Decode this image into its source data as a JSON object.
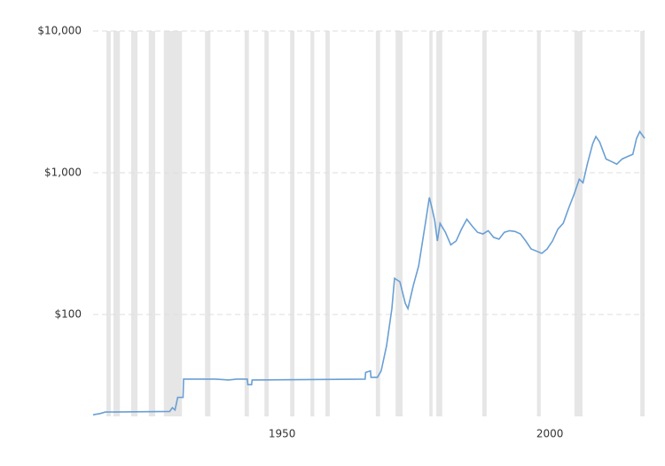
{
  "chart_data": {
    "type": "line",
    "log_y": true,
    "grid": true,
    "xlim": [
      1914.7,
      2017.7
    ],
    "xticks": [
      1950,
      2000
    ],
    "ylim": [
      19.1,
      10000
    ],
    "yticks": [
      {
        "value": 100,
        "label": "$100"
      },
      {
        "value": 1000,
        "label": "$1,000"
      },
      {
        "value": 10000,
        "label": "$10,000"
      }
    ],
    "shading_color": "#e6e6e6",
    "recessions": [
      [
        1917.2,
        1918.0
      ],
      [
        1918.5,
        1919.7
      ],
      [
        1921.8,
        1923.0
      ],
      [
        1925.1,
        1926.3
      ],
      [
        1927.9,
        1931.3
      ],
      [
        1935.6,
        1936.6
      ],
      [
        1943.0,
        1943.8
      ],
      [
        1946.7,
        1947.5
      ],
      [
        1951.5,
        1952.3
      ],
      [
        1955.3,
        1956.0
      ],
      [
        1958.1,
        1958.9
      ],
      [
        1967.5,
        1968.3
      ],
      [
        1971.2,
        1972.5
      ],
      [
        1977.5,
        1978.1
      ],
      [
        1978.8,
        1979.9
      ],
      [
        1987.4,
        1988.2
      ],
      [
        1997.6,
        1998.3
      ],
      [
        2004.6,
        2006.1
      ],
      [
        2016.9,
        2017.7
      ]
    ],
    "x": [
      1914.7,
      1916,
      1917,
      1929,
      1929.5,
      1930,
      1930.5,
      1931.5,
      1931.6,
      1937.5,
      1940,
      1941.5,
      1943.5,
      1943.6,
      1944.3,
      1944.4,
      1965.5,
      1965.6,
      1966.5,
      1966.6,
      1967.8,
      1968.5,
      1969.5,
      1970.5,
      1971,
      1972,
      1973,
      1973.5,
      1974.5,
      1975.5,
      1976.8,
      1977.5,
      1978,
      1978.5,
      1979,
      1979.5,
      1980.5,
      1981.5,
      1982.5,
      1983.5,
      1984.5,
      1985.5,
      1986.5,
      1987.5,
      1988.5,
      1989.5,
      1990.5,
      1991.5,
      1992.5,
      1993.5,
      1994.5,
      1995.5,
      1996.5,
      1997.5,
      1998.5,
      1999.5,
      2000.5,
      2001.5,
      2002.5,
      2003.5,
      2004.5,
      2005.5,
      2006.2,
      2007,
      2008,
      2008.6,
      2009.3,
      2010.5,
      2011.5,
      2012.5,
      2013.5,
      2014.5,
      2015.5,
      2016.2,
      2016.8,
      2017.7
    ],
    "series": [
      {
        "color": "#6a9fd4",
        "values": [
          19.6,
          20.0,
          20.5,
          20.7,
          22,
          21.2,
          26,
          26,
          35,
          35,
          34.5,
          35,
          35,
          32,
          32,
          34.5,
          35,
          39,
          40,
          36,
          36,
          40,
          60,
          110,
          180,
          170,
          120,
          110,
          160,
          220,
          450,
          670,
          560,
          460,
          330,
          440,
          380,
          310,
          330,
          400,
          470,
          420,
          380,
          370,
          390,
          350,
          340,
          380,
          390,
          385,
          370,
          330,
          290,
          280,
          270,
          290,
          330,
          400,
          440,
          560,
          700,
          900,
          850,
          1150,
          1600,
          1800,
          1650,
          1250,
          1200,
          1150,
          1250,
          1300,
          1350,
          1750,
          1950,
          1750
        ]
      }
    ]
  }
}
